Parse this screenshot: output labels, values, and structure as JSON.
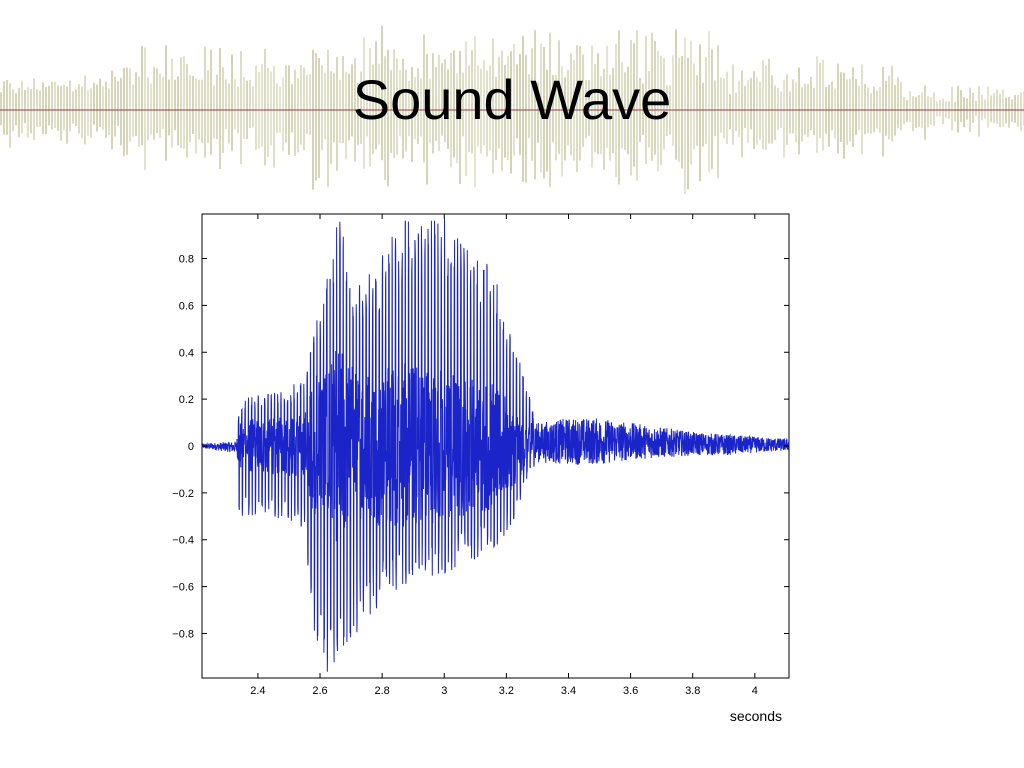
{
  "slide": {
    "title": "Sound Wave"
  },
  "colors": {
    "waveform": "#1a24c8",
    "banner_wave": "#d2d3b2",
    "banner_line": "#a0344a"
  },
  "chart_data": {
    "type": "line",
    "title": "",
    "xlabel": "seconds",
    "ylabel": "",
    "xlim": [
      2.22,
      4.11
    ],
    "ylim": [
      -0.99,
      0.99
    ],
    "x_ticks": [
      "2.4",
      "2.6",
      "2.8",
      "3",
      "3.2",
      "3.4",
      "3.6",
      "3.8",
      "4"
    ],
    "y_ticks": [
      "0.8",
      "0.6",
      "0.4",
      "0.2",
      "0",
      "−0.2",
      "−0.4",
      "−0.6",
      "−0.8"
    ],
    "x_tick_values": [
      2.4,
      2.6,
      2.8,
      3.0,
      3.2,
      3.4,
      3.6,
      3.8,
      4.0
    ],
    "y_tick_values": [
      0.8,
      0.6,
      0.4,
      0.2,
      0,
      -0.2,
      -0.4,
      -0.6,
      -0.8
    ],
    "grid": false,
    "series": [
      {
        "envelope": {
          "x": [
            2.22,
            2.33,
            2.34,
            2.45,
            2.55,
            2.58,
            2.62,
            2.66,
            2.72,
            2.78,
            2.85,
            2.92,
            3.0,
            3.05,
            3.15,
            3.22,
            3.27,
            3.3,
            3.4,
            3.5,
            3.6,
            3.7,
            3.8,
            3.9,
            4.0,
            4.11
          ],
          "upper": [
            0.01,
            0.02,
            0.2,
            0.24,
            0.28,
            0.5,
            0.72,
            0.99,
            0.7,
            0.78,
            0.96,
            0.99,
            0.99,
            0.88,
            0.78,
            0.47,
            0.25,
            0.1,
            0.12,
            0.12,
            0.1,
            0.08,
            0.06,
            0.05,
            0.04,
            0.03
          ],
          "lower": [
            -0.01,
            -0.03,
            -0.3,
            -0.3,
            -0.35,
            -0.82,
            -0.97,
            -0.9,
            -0.8,
            -0.72,
            -0.62,
            -0.58,
            -0.55,
            -0.52,
            -0.46,
            -0.34,
            -0.12,
            -0.07,
            -0.08,
            -0.08,
            -0.06,
            -0.05,
            -0.04,
            -0.04,
            -0.03,
            -0.02
          ]
        }
      }
    ]
  }
}
